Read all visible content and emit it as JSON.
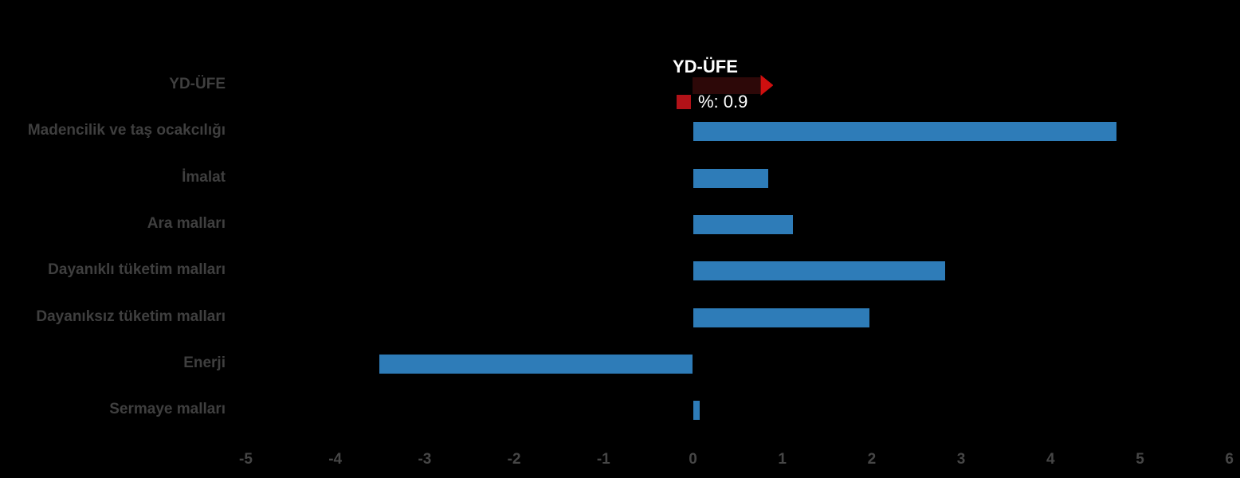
{
  "chart_data": {
    "type": "bar",
    "orientation": "horizontal",
    "title": "",
    "xlabel": "",
    "ylabel": "",
    "categories": [
      "YD-ÜFE",
      "Madencilik ve taş ocakcılığı",
      "İmalat",
      "Ara malları",
      "Dayanıklı tüketim malları",
      "Dayanıksız tüketim malları",
      "Enerji",
      "Sermaye malları"
    ],
    "values": [
      0.9,
      4.74,
      0.84,
      1.12,
      2.82,
      1.97,
      -3.51,
      0.08
    ],
    "xticks": [
      "-5",
      "-4",
      "-3",
      "-2",
      "-1",
      "0",
      "1",
      "2",
      "3",
      "4",
      "5",
      "6"
    ],
    "xlim": [
      -5,
      6
    ],
    "grid": false,
    "background_color": "#000000",
    "bar_color": "#2e7cb8",
    "category_label_color": "#3f3f3f",
    "tick_label_color": "#464646",
    "highlight": {
      "category": "YD-ÜFE",
      "value": 0.9,
      "bar_color": "#2d0808",
      "arrow_color": "#cf0f0f"
    }
  },
  "tooltip": {
    "title": "YD-ÜFE",
    "series_label": "%: 0.9",
    "swatch_color": "#b11218",
    "text_color": "#ffffff"
  }
}
